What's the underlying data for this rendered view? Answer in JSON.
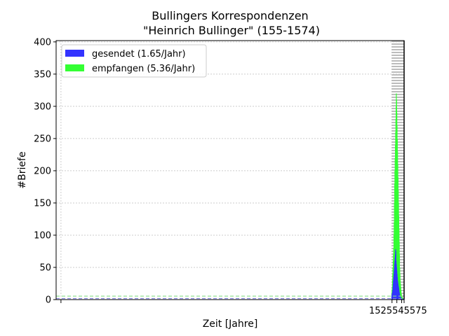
{
  "chart_data": {
    "type": "bar",
    "title_line1": "Bullingers Korrespondenzen",
    "title_line2": "\"Heinrich Bullinger\" (155-1574)",
    "xlabel": "Zeit [Jahre]",
    "ylabel": "#Briefe",
    "xlim": [
      135,
      1575
    ],
    "ylim": [
      0,
      402
    ],
    "yticks": [
      0,
      50,
      100,
      150,
      200,
      250,
      300,
      350,
      400
    ],
    "xtick_small": 155,
    "xtick_cluster": [
      "1525",
      "1545",
      "1565",
      "1575"
    ],
    "xtick_cluster_label": "1525545575",
    "grid": true,
    "legend_placement": "upper-left",
    "colors": {
      "sent": "#3333ff",
      "received": "#33ff33",
      "sent_avg": "#8888dd",
      "received_avg": "#88dd88"
    },
    "series": [
      {
        "name": "gesendet (1.65/Jahr)",
        "key": "sent",
        "average": 1.65,
        "x": [
          1524,
          1525,
          1526,
          1527,
          1528,
          1529,
          1530,
          1531,
          1532,
          1533,
          1534,
          1535,
          1536,
          1537,
          1538,
          1539,
          1540,
          1541,
          1542,
          1543,
          1544,
          1545,
          1546,
          1547,
          1548,
          1549,
          1550,
          1551,
          1552,
          1553,
          1554,
          1555,
          1556,
          1557,
          1558,
          1559,
          1560,
          1561,
          1562,
          1563,
          1564,
          1565,
          1566,
          1567,
          1568,
          1569,
          1570,
          1571,
          1572,
          1573,
          1574
        ],
        "values": [
          5,
          8,
          10,
          12,
          15,
          20,
          25,
          30,
          35,
          40,
          45,
          50,
          55,
          60,
          65,
          70,
          78,
          75,
          60,
          55,
          50,
          45,
          40,
          35,
          30,
          28,
          25,
          22,
          20,
          18,
          15,
          12,
          10,
          8,
          6,
          5,
          4,
          3,
          3,
          2,
          2,
          2,
          1,
          1,
          1,
          1,
          1,
          1,
          1,
          0,
          0
        ]
      },
      {
        "name": "empfangen (5.36/Jahr)",
        "key": "received",
        "average": 5.36,
        "x": [
          1524,
          1525,
          1526,
          1527,
          1528,
          1529,
          1530,
          1531,
          1532,
          1533,
          1534,
          1535,
          1536,
          1537,
          1538,
          1539,
          1540,
          1541,
          1542,
          1543,
          1544,
          1545,
          1546,
          1547,
          1548,
          1549,
          1550,
          1551,
          1552,
          1553,
          1554,
          1555,
          1556,
          1557,
          1558,
          1559,
          1560,
          1561,
          1562,
          1563,
          1564,
          1565,
          1566,
          1567,
          1568,
          1569,
          1570,
          1571,
          1572,
          1573,
          1574
        ],
        "values": [
          10,
          15,
          20,
          30,
          40,
          50,
          60,
          70,
          80,
          100,
          120,
          150,
          180,
          200,
          220,
          240,
          260,
          280,
          300,
          320,
          310,
          290,
          270,
          250,
          230,
          210,
          190,
          170,
          150,
          130,
          110,
          90,
          70,
          50,
          40,
          30,
          25,
          20,
          15,
          10,
          8,
          6,
          5,
          4,
          3,
          2,
          2,
          1,
          1,
          1,
          0
        ]
      }
    ]
  }
}
